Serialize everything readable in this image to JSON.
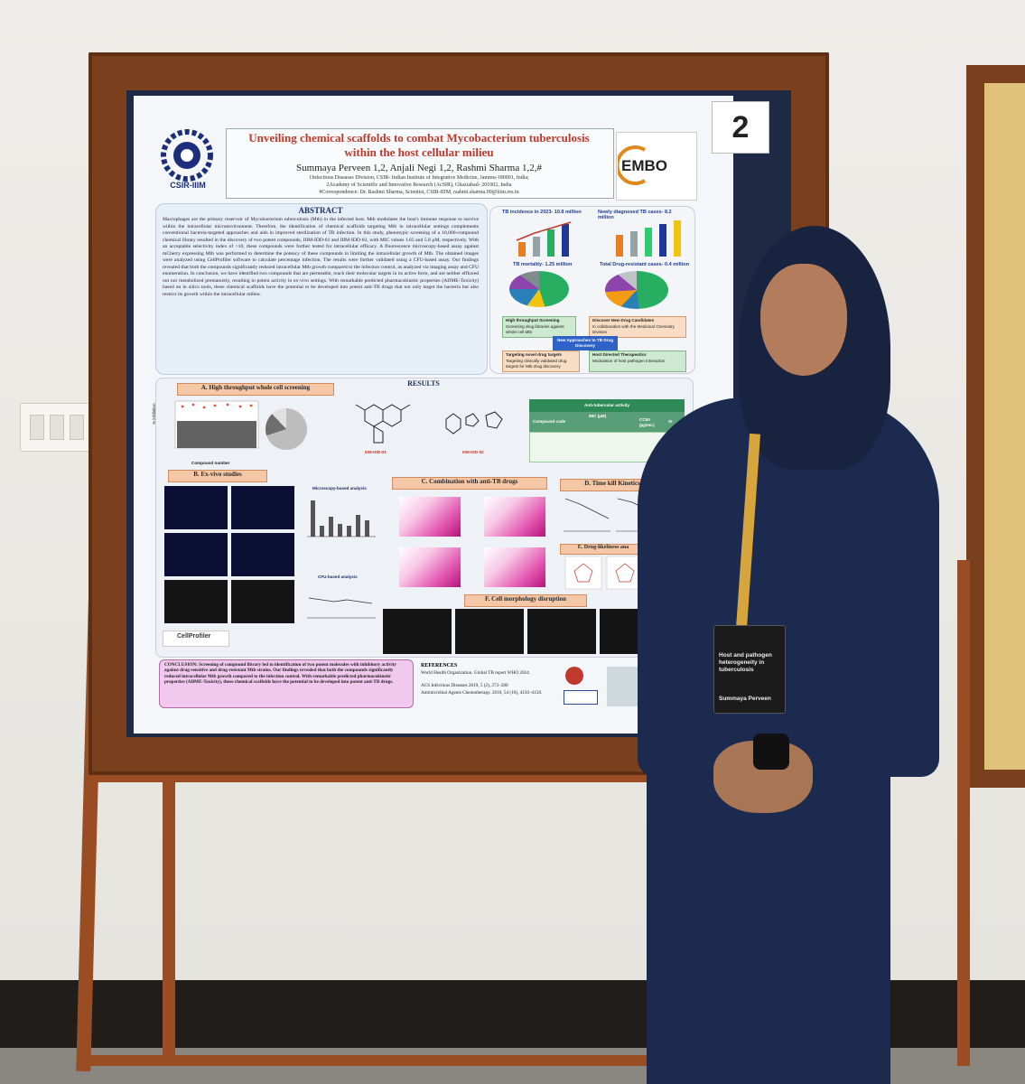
{
  "poster": {
    "number": "2",
    "institute_logo_text": "CSIR-IIIM",
    "partner_logo_text": "EMBO",
    "title": "Unveiling chemical scaffolds to combat Mycobacterium tuberculosis within the host cellular milieu",
    "authors": "Summaya Perveen 1,2, Anjali Negi 1,2, Rashmi Sharma 1,2,#",
    "affiliation_1": "1Infectious Diseases Division, CSIR- Indian Institute of Integrative Medicine, Jammu-180001, India;",
    "affiliation_2": "2Academy of Scientific and Innovative Research (AcSIR), Ghaziabad- 201002, India",
    "correspondence": "#Correspondence: Dr. Rashmi Sharma, Scientist, CSIR-IIIM, rashmi.sharma.09@iiim.res.in",
    "abstract_heading": "ABSTRACT",
    "abstract_text": "Macrophages are the primary reservoir of Mycobacterium tuberculosis (Mtb) in the infected host. Mtb modulates the host's immune response to survive within the intracellular microenvironment. Therefore, the identification of chemical scaffolds targeting Mtb in intracellular settings complements conventional bacteria-targeted approaches and aids in improved sterilization of TB infection. In this study, phenotypic screening of a 10,000-compound chemical library resulted in the discovery of two potent compounds, IIIM-IDD-01 and IIIM-IDD-02, with MIC values 1.65 and 5.8 µM, respectively. With an acceptable selectivity index of >10, these compounds were further tested for intracellular efficacy. A fluorescence microscopy-based assay against mCherry expressing Mtb was performed to determine the potency of these compounds in limiting the intracellular growth of Mtb. The obtained images were analyzed using CellProfiler software to calculate percentage infection. The results were further validated using a CFU-based assay. Our findings revealed that both the compounds significantly reduced intracellular Mtb growth compared to the infection control, as analyzed via imaging assay and CFU enumeration. In conclusion, we have identified two compounds that are permeable, reach their molecular targets in its active form, and are neither effluxed out nor metabolized prematurely, resulting in potent activity in ex-vivo settings. With remarkable predicted pharmacokinetic properties (ADME-Toxicity) based on in silico tools, these chemical scaffolds have the potential to be developed into potent anti-TB drugs that not only target the bacteria but also restrict its growth within the intracellular milieu.",
    "stats": {
      "tb_incidence": "TB incidence in 2023- 10.8 million",
      "newly_diagnosed": "Newly diagnosed TB cases- 8.2 million",
      "tb_mortality": "TB mortality- 1.25 million",
      "drug_resistant": "Total Drug-resistant cases- 0.4 million",
      "box_1_title": "High throughput Screening",
      "box_1_text": "Screening drug libraries against whole cell Mtb",
      "box_2_title": "Discover New Drug Candidates",
      "box_2_text": "In collaboration with the Medicinal Chemistry Division",
      "box_center": "New Approaches to TB Drug Discovery",
      "box_3_title": "Targeting novel drug targets",
      "box_3_text": "Targeting clinically validated drug targets for Mtb drug discovery",
      "box_4_title": "Host Directed Therapeutics",
      "box_4_text": "Modulation of host pathogen interaction"
    },
    "results_heading": "RESULTS",
    "section_a": "A. High throughput whole cell screening",
    "section_a_xlabel": "Compound number",
    "section_a_ylabel": "% inhibition",
    "compound_1": "IIIM-IDD-01",
    "compound_2": "IIIM-IDD-02",
    "activity_table_title": "Anti-tubercular activity",
    "activity_table_header": [
      "Compound code",
      "MIC (µM)",
      "",
      "",
      "CC50 (µg/mL)",
      "SI"
    ],
    "section_b": "B. Ex-vivo studies",
    "microscopy_label": "Microscopy-based analysis",
    "cfu_label": "CFU-based analysis",
    "section_c": "C. Combination with anti-TB drugs",
    "section_d": "D. Time kill Kinetics",
    "section_e": "E. Drug-likeliness ana",
    "section_f": "F. Cell morphology disruption",
    "cellprofiler": "CellProfiler",
    "conclusion": "CONCLUSION: Screening of compound library led to identification of two potent molecules with inhibitory activity against drug-sensitive and drug-resistant Mtb strains. Our findings revealed that both the compounds significantly reduced intracellular Mtb growth compared to the infection control. With remarkable predicted pharmacokinetic properties (ADME-Toxicity), these chemical scaffolds have the potential to be developed into potent anti-TB drugs.",
    "references_heading": "REFERENCES",
    "references": [
      "World Health Organization. Global TB report WHO 2024.",
      "ACS Infectious Diseases 2019, 5 (2), 272–280",
      "Antimicrobial Agents Chemotherapy. 2010, 54 (10), 4150–4158."
    ]
  },
  "badge": {
    "event": "Host and pathogen heterogeneity in tuberculosis",
    "name": "Summaya Perveen"
  },
  "colors": {
    "frame": "#7a3f1c",
    "title_red": "#c0392b",
    "kurta_navy": "#1c2a4f",
    "lanyard_gold": "#d6a53c"
  }
}
